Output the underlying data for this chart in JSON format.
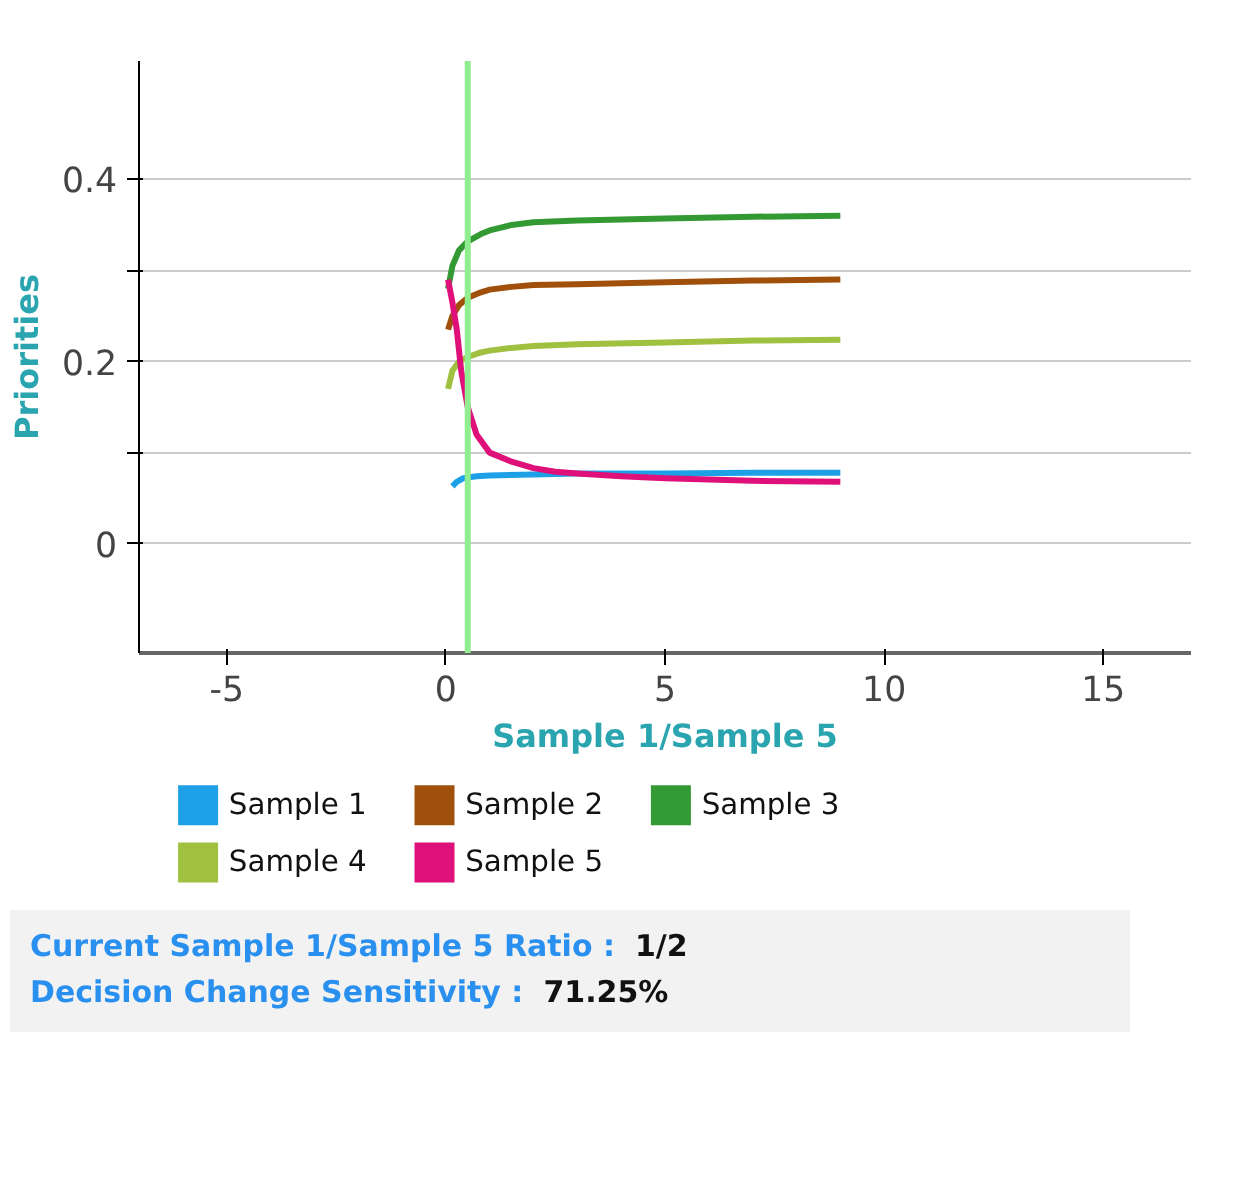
{
  "chart_data": {
    "type": "line",
    "xlabel": "Sample 1/Sample 5",
    "ylabel": "Priorities",
    "xlim": [
      -7,
      17
    ],
    "xticks": [
      -5,
      0,
      5,
      10,
      15
    ],
    "ylim": [
      -0.12,
      0.53
    ],
    "yticks": [
      0,
      {
        "value": 0.1,
        "label": null
      },
      0.2,
      {
        "value": 0.3,
        "label": null
      },
      0.4
    ],
    "grid": "y",
    "legend": "bottom",
    "line_style": "solid",
    "ref_lines": [
      {
        "axis": "x",
        "value": 0.5,
        "label": null,
        "color": "#90ee90"
      }
    ],
    "series": [
      {
        "name": "Sample 1",
        "color": "#1ea0e6",
        "x": [
          0.15,
          0.25,
          0.4,
          0.7,
          1,
          2,
          3,
          5,
          7,
          9
        ],
        "values": [
          0.063,
          0.068,
          0.072,
          0.074,
          0.075,
          0.076,
          0.077,
          0.077,
          0.078,
          0.078
        ]
      },
      {
        "name": "Sample 2",
        "color": "#a0500a",
        "x": [
          0.05,
          0.15,
          0.3,
          0.5,
          0.8,
          1,
          1.5,
          2,
          3,
          5,
          7,
          9
        ],
        "values": [
          0.235,
          0.25,
          0.262,
          0.27,
          0.276,
          0.279,
          0.282,
          0.284,
          0.285,
          0.287,
          0.289,
          0.29
        ]
      },
      {
        "name": "Sample 3",
        "color": "#339933",
        "x": [
          0.05,
          0.15,
          0.3,
          0.5,
          0.8,
          1,
          1.5,
          2,
          3,
          5,
          7,
          9
        ],
        "values": [
          0.28,
          0.305,
          0.322,
          0.332,
          0.34,
          0.344,
          0.35,
          0.353,
          0.355,
          0.357,
          0.359,
          0.36
        ]
      },
      {
        "name": "Sample 4",
        "color": "#a0c040",
        "x": [
          0.05,
          0.15,
          0.3,
          0.5,
          0.8,
          1,
          1.5,
          2,
          3,
          5,
          7,
          9
        ],
        "values": [
          0.17,
          0.19,
          0.2,
          0.205,
          0.21,
          0.212,
          0.215,
          0.217,
          0.219,
          0.221,
          0.223,
          0.224
        ]
      },
      {
        "name": "Sample 5",
        "color": "#e0107a",
        "x": [
          0.05,
          0.15,
          0.25,
          0.35,
          0.5,
          0.7,
          1,
          1.5,
          2,
          2.5,
          3,
          4,
          5,
          7,
          9
        ],
        "values": [
          0.29,
          0.265,
          0.235,
          0.19,
          0.15,
          0.12,
          0.1,
          0.09,
          0.083,
          0.079,
          0.077,
          0.074,
          0.072,
          0.069,
          0.068
        ]
      }
    ],
    "annotations": [
      "Current Sample 1/Sample 5 Ratio :",
      "1/2",
      "Decision Change Sensitivity :",
      "71.25%"
    ]
  }
}
